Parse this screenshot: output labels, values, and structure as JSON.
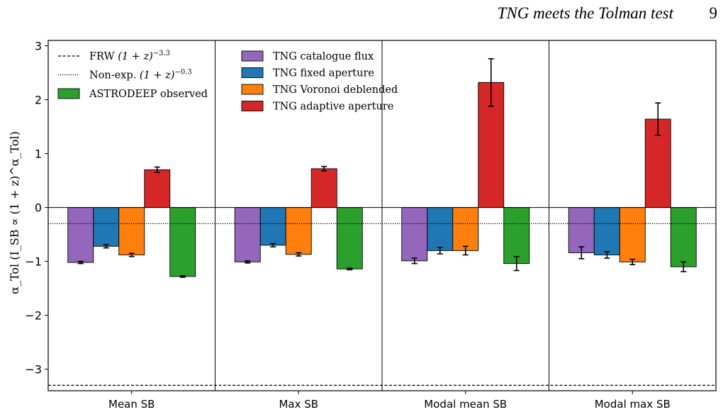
{
  "header": {
    "title": "TNG meets the Tolman test",
    "page_number": "9"
  },
  "chart_data": {
    "type": "bar",
    "title": "",
    "xlabel": "",
    "ylabel": "α_Tol  (I_SB ∝ (1 + z)^α_Tol)",
    "ylim": [
      -3.4,
      3.1
    ],
    "yticks": [
      3,
      2,
      1,
      0,
      -1,
      -2,
      -3
    ],
    "ytick_labels": [
      "3",
      "2",
      "1",
      "0",
      "−1",
      "−2",
      "−3"
    ],
    "categories": [
      "Mean SB",
      "Max SB",
      "Modal mean SB",
      "Modal max SB"
    ],
    "series": [
      {
        "name": "TNG catalogue flux",
        "color": "#9467bd",
        "values": [
          -1.02,
          -1.01,
          -0.99,
          -0.84
        ],
        "errors": [
          0.02,
          0.02,
          0.05,
          0.11
        ]
      },
      {
        "name": "TNG fixed aperture",
        "color": "#1f77b4",
        "values": [
          -0.72,
          -0.7,
          -0.8,
          -0.88
        ],
        "errors": [
          0.03,
          0.03,
          0.06,
          0.06
        ]
      },
      {
        "name": "TNG Voronoi deblended",
        "color": "#ff7f0e",
        "values": [
          -0.88,
          -0.87,
          -0.8,
          -1.01
        ],
        "errors": [
          0.03,
          0.03,
          0.08,
          0.05
        ]
      },
      {
        "name": "TNG adaptive aperture",
        "color": "#d62728",
        "values": [
          0.7,
          0.72,
          2.32,
          1.64
        ],
        "errors": [
          0.05,
          0.04,
          0.44,
          0.3
        ]
      },
      {
        "name": "ASTRODEEP observed",
        "color": "#2ca02c",
        "values": [
          -1.28,
          -1.14,
          -1.04,
          -1.1
        ],
        "errors": [
          0.015,
          0.015,
          0.13,
          0.09
        ]
      }
    ],
    "reference_lines": [
      {
        "name": "FRW (1 + z)^−3.3",
        "value": -3.3,
        "style": "dashed"
      },
      {
        "name": "Non-exp. (1 + z)^−0.3",
        "value": -0.3,
        "style": "dotted"
      }
    ],
    "legend_left": [
      {
        "kind": "line",
        "style": "dashed",
        "label_main": "FRW ",
        "label_math": "(1 + z)",
        "label_sup": "−3.3"
      },
      {
        "kind": "line",
        "style": "dotted",
        "label_main": "Non-exp. ",
        "label_math": "(1 + z)",
        "label_sup": "−0.3"
      },
      {
        "kind": "patch",
        "series": 4,
        "label_main": "ASTRODEEP observed"
      }
    ],
    "legend_right": [
      {
        "kind": "patch",
        "series": 0,
        "label_main": "TNG catalogue flux"
      },
      {
        "kind": "patch",
        "series": 1,
        "label_main": "TNG fixed aperture"
      },
      {
        "kind": "patch",
        "series": 2,
        "label_main": "TNG Voronoi deblended"
      },
      {
        "kind": "patch",
        "series": 3,
        "label_main": "TNG adaptive aperture"
      }
    ],
    "legend_placement": "top-left",
    "grid": false,
    "panel_separators": true,
    "zero_line": true
  }
}
